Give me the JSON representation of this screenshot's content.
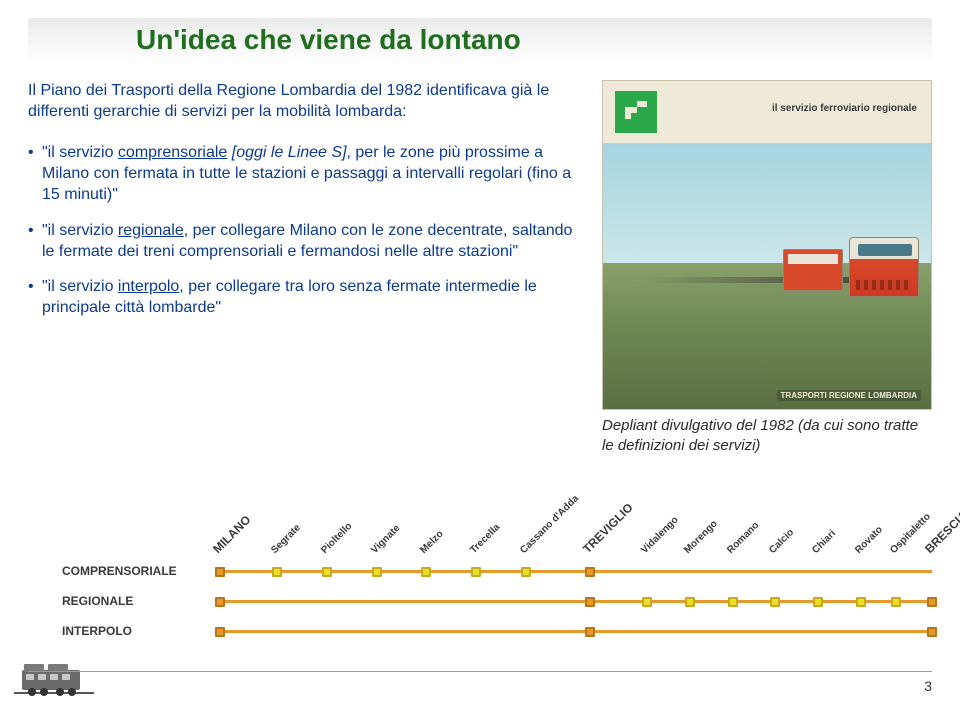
{
  "title": "Un'idea che viene da lontano",
  "intro": "Il Piano dei Trasporti della Regione Lombardia del 1982 identificava già le differenti gerarchie di servizi per la mobilità lombarda:",
  "bullets": [
    {
      "prefix": "\"il servizio ",
      "underline": "comprensoriale",
      "italic": " [oggi le Linee S]",
      "rest": ", per le zone più prossime a Milano con fermata in tutte le stazioni e passaggi a intervalli regolari (fino a 15 minuti)\""
    },
    {
      "prefix": "\"il servizio ",
      "underline": "regionale",
      "rest": ", per collegare Milano con le zone decentrate, saltando le fermate dei treni comprensoriali e fermandosi nelle altre stazioni\""
    },
    {
      "prefix": "\"il servizio ",
      "underline": "interpolo",
      "rest": ", per collegare tra loro senza fermate intermedie le principale città lombarde\""
    }
  ],
  "poster": {
    "logo_text": "il servizio ferroviario regionale",
    "footer": "TRASPORTI REGIONE LOMBARDIA",
    "colors": {
      "frame_bg": "#efe9d8",
      "logo_bg": "#2aa84a",
      "sky_top": "#a5d4df",
      "sky_bot": "#cce6ea",
      "ground_top": "#8aa06a",
      "ground_bot": "#5a6f44",
      "train_red": "#d84a2a",
      "train_cream": "#e8e4d8"
    }
  },
  "caption": "Depliant divulgativo del 1982 (da cui sono tratte le definizioni dei servizi)",
  "diagram": {
    "row_labels": [
      "COMPRENSORIALE",
      "REGIONALE",
      "INTERPOLO"
    ],
    "line_color": "#e69a2a",
    "stop_fill": "#e6e02a",
    "stop_border": "#c9a91f",
    "stations_top": [
      {
        "label": "MILANO",
        "pct": 0,
        "big": true
      },
      {
        "label": "Segrate",
        "pct": 8
      },
      {
        "label": "Pioltello",
        "pct": 15
      },
      {
        "label": "Vignate",
        "pct": 22
      },
      {
        "label": "Melzo",
        "pct": 29
      },
      {
        "label": "Trecella",
        "pct": 36
      },
      {
        "label": "Cassano d'Adda",
        "pct": 43
      },
      {
        "label": "TREVIGLIO",
        "pct": 52,
        "big": true
      },
      {
        "label": "Vidalengo",
        "pct": 60
      },
      {
        "label": "Morengo",
        "pct": 66
      },
      {
        "label": "Romano",
        "pct": 72
      },
      {
        "label": "Calcio",
        "pct": 78
      },
      {
        "label": "Chiari",
        "pct": 84
      },
      {
        "label": "Rovato",
        "pct": 90
      },
      {
        "label": "Ospitaletto",
        "pct": 95
      },
      {
        "label": "BRESCIA",
        "pct": 100,
        "big": true
      }
    ],
    "stops": {
      "l1": [
        0,
        8,
        15,
        22,
        29,
        36,
        43,
        52
      ],
      "l2": [
        0,
        52,
        60,
        66,
        72,
        78,
        84,
        90,
        95,
        100
      ],
      "l3": [
        0,
        52,
        100
      ]
    }
  },
  "page_number": "3"
}
